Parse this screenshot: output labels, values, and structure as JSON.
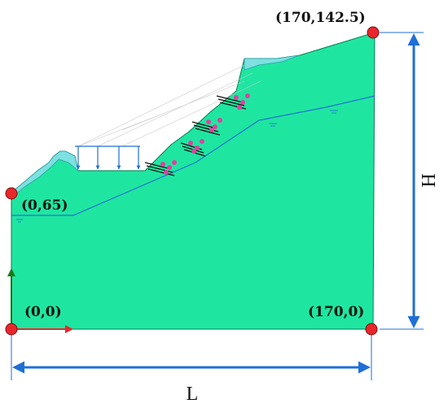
{
  "points": [
    {
      "id": "top-right",
      "label": "(170,142.5)"
    },
    {
      "id": "left-crest",
      "label": "(0,65)"
    },
    {
      "id": "origin",
      "label": "(0,0)"
    },
    {
      "id": "bottom-right",
      "label": "(170,0)"
    }
  ],
  "dimensions": {
    "height_label": "H",
    "length_label": "L"
  },
  "colors": {
    "soil": "#1ee6a0",
    "cover_layer": "#7ee0e0",
    "water_table": "#1f6fd6",
    "dimension_arrow": "#1f6fd6",
    "corner_point": "#e8272b",
    "axis_y": "#1a7a1a",
    "axis_x": "#e8272b",
    "anchor_head": "#e040a0",
    "surcharge_arrow": "#1f6fd6"
  }
}
